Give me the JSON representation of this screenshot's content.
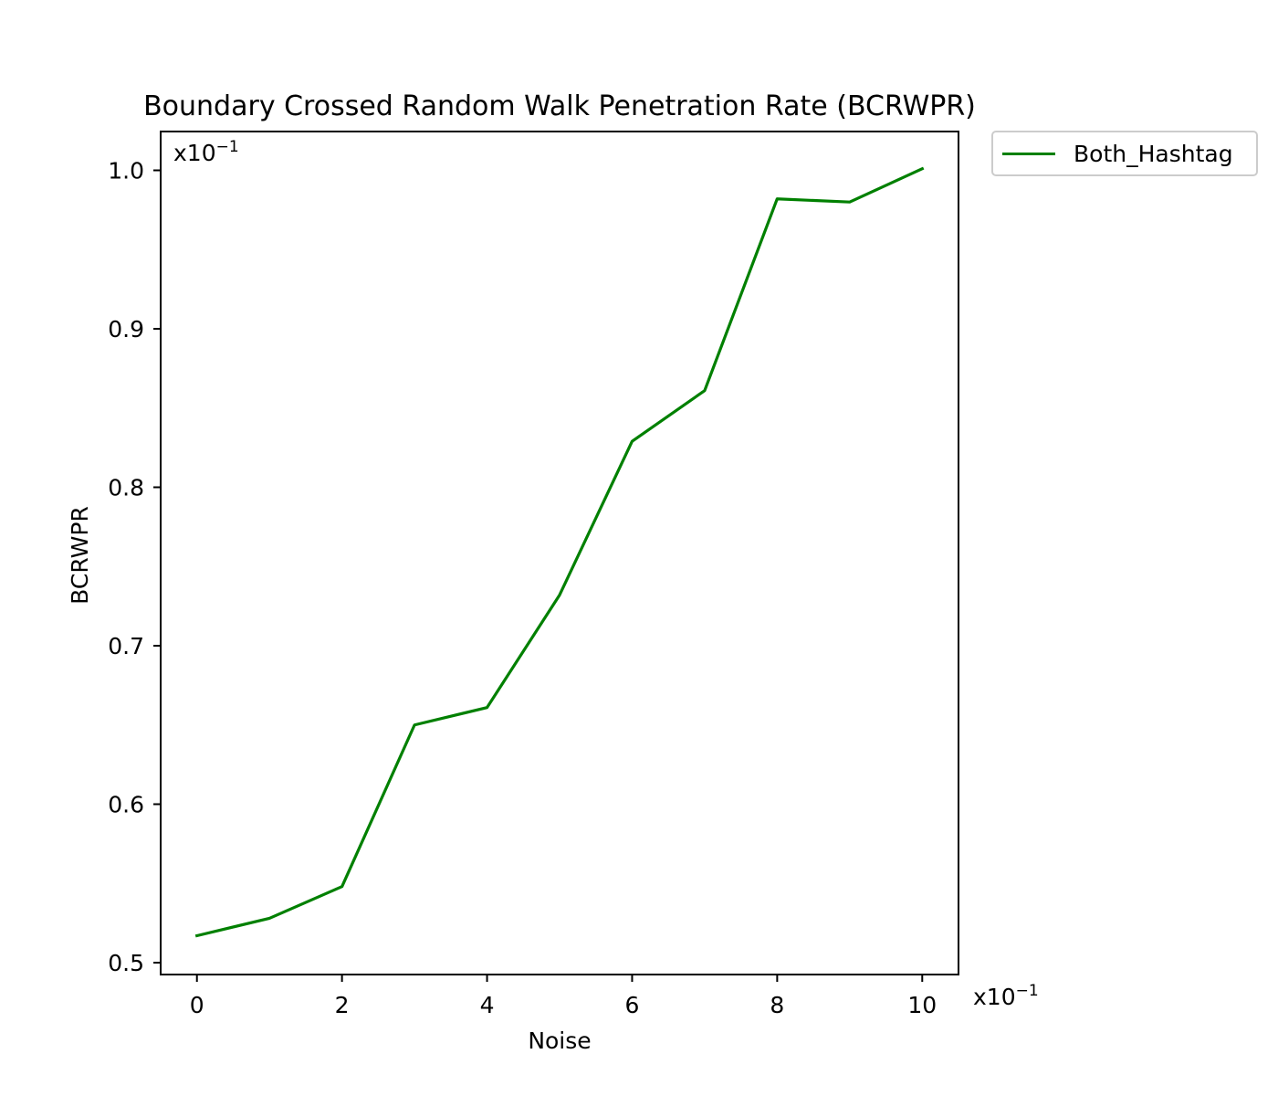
{
  "chart_data": {
    "type": "line",
    "title": "Boundary Crossed Random Walk Penetration Rate (BCRWPR)",
    "xlabel": "Noise",
    "ylabel": "BCRWPR",
    "x_multiplier_label": "x10",
    "x_multiplier_exponent": "−1",
    "y_multiplier_label": "x10",
    "y_multiplier_exponent": "−1",
    "xlim": [
      -0.5,
      10.5
    ],
    "ylim": [
      0.4925,
      1.0245
    ],
    "xticks": [
      0,
      2,
      4,
      6,
      8,
      10
    ],
    "xtick_labels": [
      "0",
      "2",
      "4",
      "6",
      "8",
      "10"
    ],
    "yticks": [
      0.5,
      0.6,
      0.7,
      0.8,
      0.9,
      1.0
    ],
    "ytick_labels": [
      "0.5",
      "0.6",
      "0.7",
      "0.8",
      "0.9",
      "1.0"
    ],
    "grid": false,
    "legend_position": "outside-top-right",
    "x": [
      0,
      1,
      2,
      3,
      4,
      5,
      6,
      7,
      8,
      9,
      10
    ],
    "series": [
      {
        "name": "Both_Hashtag",
        "color": "#008000",
        "values": [
          0.517,
          0.528,
          0.548,
          0.65,
          0.661,
          0.732,
          0.829,
          0.861,
          0.982,
          0.98,
          1.001
        ]
      }
    ]
  }
}
